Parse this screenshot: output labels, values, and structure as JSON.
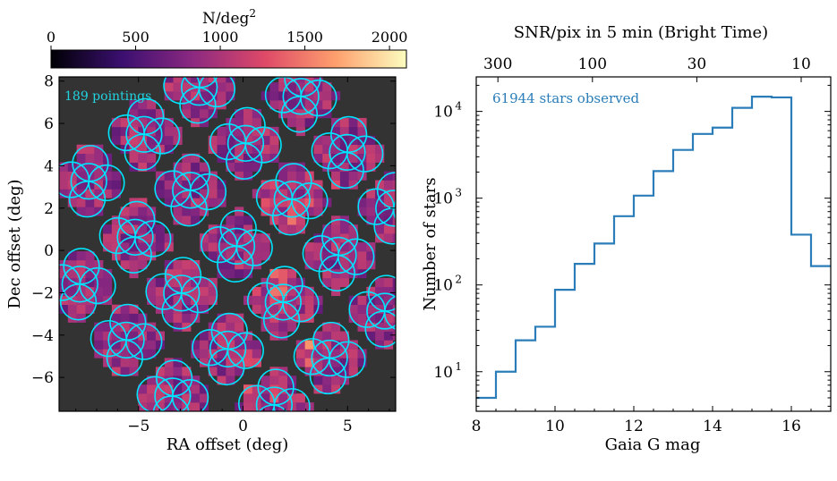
{
  "chart_data": [
    {
      "type": "heatmap",
      "colorbar": {
        "label": "N/deg",
        "label_superscript": "2",
        "range": [
          0,
          2100
        ],
        "ticks": [
          0,
          500,
          1000,
          1500,
          2000
        ],
        "colormap": [
          "#000004",
          "#3b0f70",
          "#8c2981",
          "#de4968",
          "#fe9f6d",
          "#fcfdbf"
        ]
      },
      "background_color": "#333333",
      "xlabel": "RA offset (deg)",
      "ylabel": "Dec offset (deg)",
      "xlim": [
        -8.8,
        7.3
      ],
      "ylim": [
        -7.6,
        8.2
      ],
      "xticks": [
        -5,
        0,
        5
      ],
      "yticks": [
        -6,
        -4,
        -2,
        0,
        2,
        4,
        6,
        8
      ],
      "annotation": "189 pointings",
      "pointing_color": "#00e5ff",
      "pointing_radius_deg": 0.85,
      "grid": false
    },
    {
      "type": "histogram",
      "title": "SNR/pix in 5 min (Bright Time)",
      "top_axis_ticks": [
        "300",
        "100",
        "30",
        "10"
      ],
      "top_axis_tick_at_mag": [
        8.55,
        10.95,
        13.6,
        16.25
      ],
      "xlabel": "Gaia G mag",
      "ylabel": "Number of stars",
      "xlim": [
        8,
        17
      ],
      "ylim": [
        3.5,
        25000
      ],
      "yscale": "log",
      "xticks": [
        8,
        10,
        12,
        14,
        16
      ],
      "yticks": [
        10,
        100,
        1000,
        10000
      ],
      "ytick_labels": {
        "base": "10",
        "exponents": [
          "1",
          "2",
          "3",
          "4"
        ]
      },
      "annotation": "61944 stars observed",
      "series_color": "#2a7db8",
      "bin_edges": [
        8.0,
        8.5,
        9.0,
        9.5,
        10.0,
        10.5,
        11.0,
        11.5,
        12.0,
        12.5,
        13.0,
        13.5,
        14.0,
        14.5,
        15.0,
        15.5,
        16.0,
        16.5,
        17.0
      ],
      "values": [
        5,
        10,
        23,
        33,
        88,
        175,
        300,
        620,
        1070,
        2050,
        3600,
        5500,
        6500,
        11000,
        14800,
        14500,
        380,
        165
      ]
    }
  ]
}
